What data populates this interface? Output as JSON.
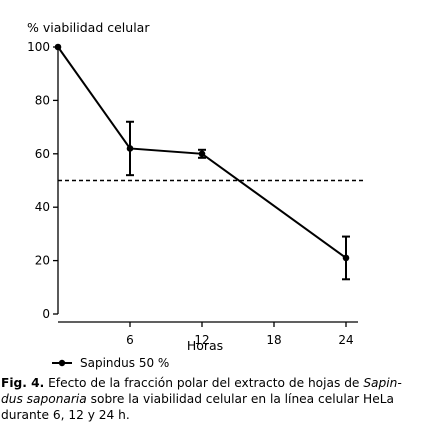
{
  "chart_data": {
    "type": "line",
    "ylabel": "% viabilidad celular",
    "xlabel": "Horas",
    "xlim": [
      0,
      25
    ],
    "ylim": [
      0,
      100
    ],
    "xticks": [
      6,
      12,
      18,
      24
    ],
    "yticks": [
      0,
      20,
      40,
      60,
      80,
      100
    ],
    "reference_line": {
      "y": 50,
      "style": "dashed"
    },
    "series": [
      {
        "name": "Sapindus 50 %",
        "x": [
          0,
          6,
          12,
          24
        ],
        "y": [
          100,
          62,
          60,
          21
        ],
        "error_upper": [
          100,
          72,
          61.5,
          29
        ],
        "error_lower": [
          100,
          52,
          58.5,
          13
        ]
      }
    ]
  },
  "caption": {
    "label": "Fig. 4.",
    "part1": " Efecto de la fracción polar del extracto de hojas de ",
    "italic1": "Sapin-",
    "italic2": "dus saponaria",
    "part2": " sobre la viabilidad celular en la línea celular HeLa durante 6, 12 y 24 h."
  }
}
